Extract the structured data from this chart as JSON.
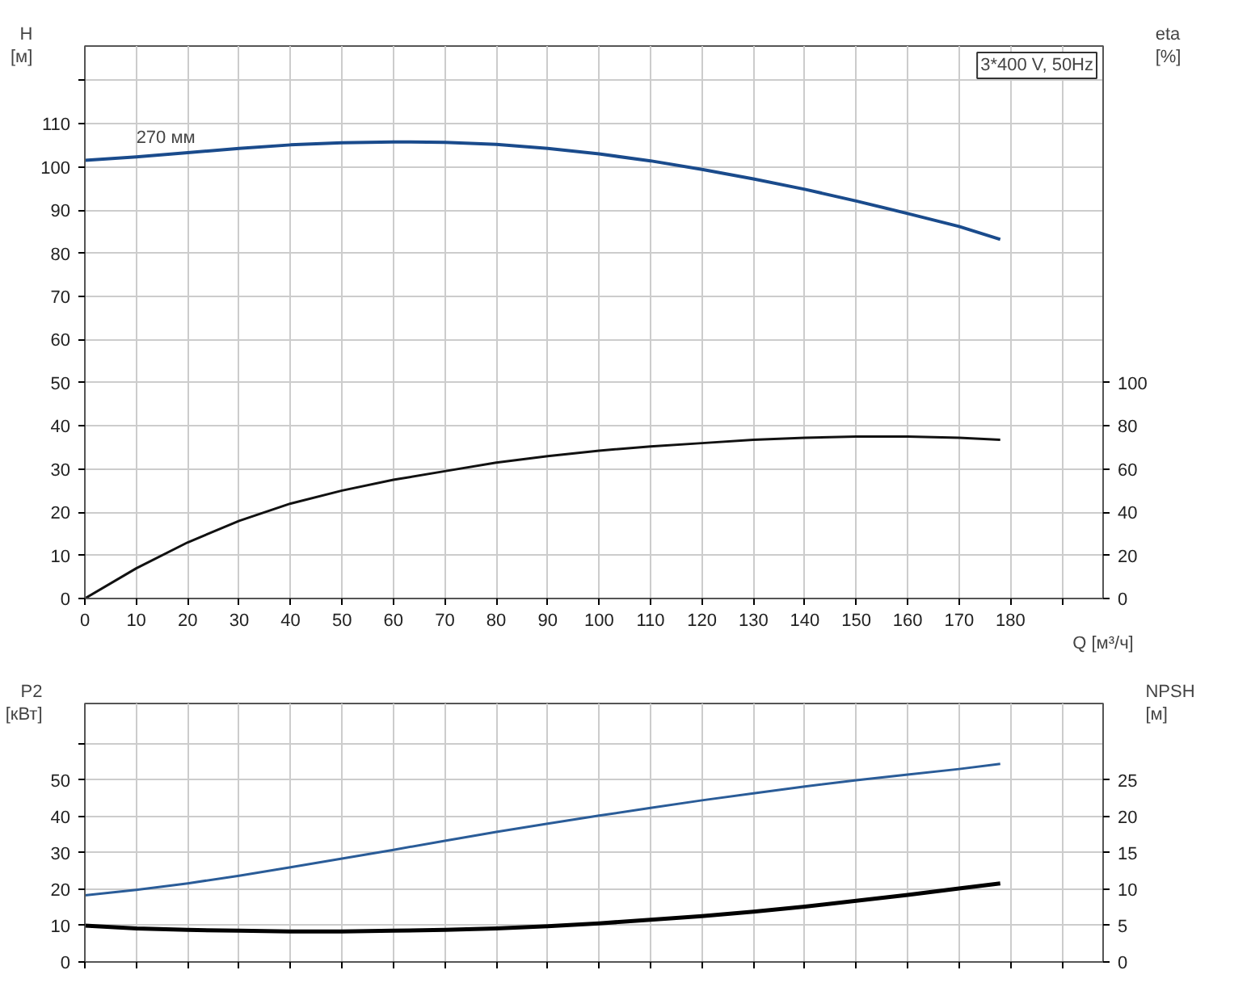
{
  "chart_data": [
    {
      "type": "line",
      "xlabel": "Q [м³/ч]",
      "ylabel": "H [м]",
      "y2label": "eta [%]",
      "grid": true,
      "annotations": [
        "3*400 V, 50Hz",
        {
          "text": "270 мм",
          "x": 10,
          "y": 104
        }
      ],
      "xlim": [
        0,
        198
      ],
      "xticks": [
        0,
        10,
        20,
        30,
        40,
        50,
        60,
        70,
        80,
        90,
        100,
        110,
        120,
        130,
        140,
        150,
        160,
        170,
        180,
        {
          "value": 190,
          "label": null
        }
      ],
      "ylim": [
        0,
        128
      ],
      "yticks": [
        0,
        10,
        20,
        30,
        40,
        50,
        60,
        70,
        80,
        90,
        100,
        110,
        {
          "value": 120,
          "label": null
        }
      ],
      "y2lim": [
        0,
        256
      ],
      "y2ticks": [
        0,
        20,
        40,
        60,
        80,
        100
      ],
      "x": [
        0,
        10,
        20,
        30,
        40,
        50,
        60,
        70,
        80,
        90,
        100,
        110,
        120,
        130,
        140,
        150,
        160,
        170,
        178
      ],
      "series": [
        {
          "color": "#1a4b8c",
          "values": [
            101.5,
            102.3,
            103.3,
            104.3,
            105.1,
            105.6,
            105.8,
            105.7,
            105.2,
            104.3,
            103.0,
            101.4,
            99.4,
            97.2,
            94.8,
            92.1,
            89.2,
            86.2,
            83.2
          ]
        },
        {
          "color": "#111111",
          "axis": "y2",
          "values": [
            0,
            14,
            26,
            36,
            44,
            50,
            55,
            59,
            63,
            66,
            68.5,
            70.5,
            72,
            73.5,
            74.5,
            75,
            75,
            74.5,
            73.5
          ]
        }
      ]
    },
    {
      "type": "line",
      "ylabel": "P2 [кВт]",
      "y2label": "NPSH [м]",
      "grid": true,
      "tick_labels": "y",
      "xlim": [
        0,
        198
      ],
      "xticks": [
        0,
        10,
        20,
        30,
        40,
        50,
        60,
        70,
        80,
        90,
        100,
        110,
        120,
        130,
        140,
        150,
        160,
        170,
        180,
        190
      ],
      "ylim": [
        0,
        71
      ],
      "yticks": [
        0,
        10,
        20,
        30,
        40,
        50,
        {
          "value": 60,
          "label": null
        }
      ],
      "y2lim": [
        0,
        35.5
      ],
      "y2ticks": [
        0,
        5,
        10,
        15,
        20,
        25
      ],
      "x": [
        0,
        10,
        20,
        30,
        40,
        50,
        60,
        70,
        80,
        90,
        100,
        110,
        120,
        130,
        140,
        150,
        160,
        170,
        178
      ],
      "series": [
        {
          "color": "#2a5c98",
          "values": [
            18.3,
            19.8,
            21.6,
            23.7,
            26.0,
            28.4,
            30.8,
            33.3,
            35.7,
            38.0,
            40.2,
            42.3,
            44.4,
            46.3,
            48.2,
            49.9,
            51.5,
            53.0,
            54.4
          ]
        },
        {
          "color": "#000000",
          "axis": "y2",
          "values": [
            5.0,
            4.6,
            4.4,
            4.3,
            4.2,
            4.2,
            4.3,
            4.4,
            4.6,
            4.9,
            5.3,
            5.8,
            6.3,
            6.9,
            7.6,
            8.4,
            9.2,
            10.1,
            10.8
          ]
        }
      ]
    }
  ]
}
